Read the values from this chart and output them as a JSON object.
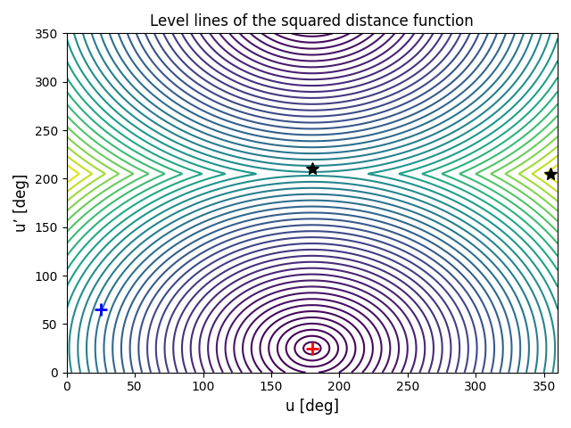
{
  "title": "Level lines of the squared distance function",
  "xlabel": "u [deg]",
  "ylabel": "u’ [deg]",
  "xlim": [
    0,
    360
  ],
  "ylim": [
    0,
    350
  ],
  "xticks": [
    0,
    50,
    100,
    150,
    200,
    250,
    300,
    350
  ],
  "yticks": [
    0,
    50,
    100,
    150,
    200,
    250,
    300,
    350
  ],
  "min_point": [
    180,
    25
  ],
  "blue_cross": [
    25,
    65
  ],
  "star1": [
    180,
    210
  ],
  "star2": [
    355,
    205
  ],
  "n_levels": 40,
  "colormap": "viridis",
  "figsize": [
    6.4,
    4.8
  ],
  "dpi": 100,
  "ref_u": 180,
  "ref_up": 25
}
